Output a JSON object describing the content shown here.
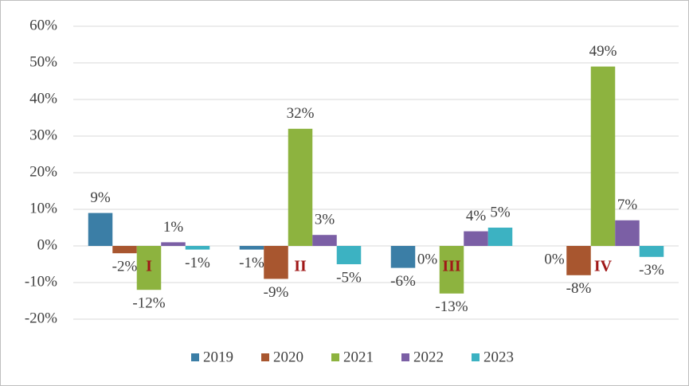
{
  "chart_data": {
    "type": "bar",
    "categories": [
      "I",
      "II",
      "III",
      "IV"
    ],
    "series": [
      {
        "name": "2019",
        "color": "#3b7ea6",
        "values": [
          9,
          -1,
          -6,
          0
        ],
        "value_labels": [
          "9%",
          "-1%",
          "-6%",
          "0%"
        ]
      },
      {
        "name": "2020",
        "color": "#a8562f",
        "values": [
          -2,
          -9,
          0,
          -8
        ],
        "value_labels": [
          "-2%",
          "-9%",
          "0%",
          "-8%"
        ]
      },
      {
        "name": "2021",
        "color": "#8db33f",
        "values": [
          -12,
          32,
          -13,
          49
        ],
        "value_labels": [
          "-12%",
          "32%",
          "-13%",
          "49%"
        ]
      },
      {
        "name": "2022",
        "color": "#7b5fa5",
        "values": [
          1,
          3,
          4,
          7
        ],
        "value_labels": [
          "1%",
          "3%",
          "4%",
          "7%"
        ]
      },
      {
        "name": "2023",
        "color": "#3cb2c2",
        "values": [
          -1,
          -5,
          5,
          -3
        ],
        "value_labels": [
          "-1%",
          "-5%",
          "5%",
          "-3%"
        ]
      }
    ],
    "ylim": [
      -20,
      60
    ],
    "yticks": [
      {
        "value": -20,
        "label": "-20%"
      },
      {
        "value": -10,
        "label": "-10%"
      },
      {
        "value": 0,
        "label": "0%"
      },
      {
        "value": 10,
        "label": "10%"
      },
      {
        "value": 20,
        "label": "20%"
      },
      {
        "value": 30,
        "label": "30%"
      },
      {
        "value": 40,
        "label": "40%"
      },
      {
        "value": 50,
        "label": "50%"
      },
      {
        "value": 60,
        "label": "60%"
      }
    ],
    "grid": true,
    "legend": "bottom"
  }
}
